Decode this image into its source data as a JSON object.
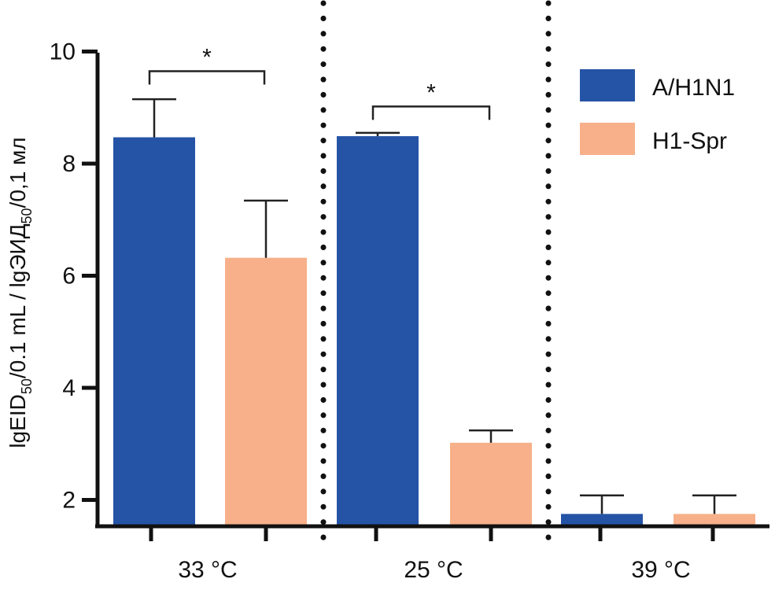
{
  "chart_data": {
    "type": "bar",
    "ylabel": "lgEID50/0.1 mL / lgЭИД50/0,1 мл",
    "ylabel_parts": {
      "p1": "lgEID",
      "s1": "50",
      "p2": "/0.1 mL / lgЭИД",
      "s2": "50",
      "p3": "/0,1 мл"
    },
    "ylim": [
      1.5,
      10
    ],
    "yticks": [
      "2",
      "4",
      "6",
      "8",
      "10"
    ],
    "categories": [
      "33 °C",
      "25 °C",
      "39 °C"
    ],
    "series": [
      {
        "name": "A/H1N1",
        "color": "#2554a6",
        "values": [
          8.47,
          8.49,
          1.75
        ],
        "errors": [
          0.68,
          0.06,
          0.33
        ]
      },
      {
        "name": "H1-Spr",
        "color": "#f7b089",
        "values": [
          6.32,
          3.02,
          1.75
        ],
        "errors": [
          1.02,
          0.22,
          0.33
        ]
      }
    ],
    "significance": [
      {
        "category_index": 0,
        "label": "*",
        "level": 9.65
      },
      {
        "category_index": 1,
        "label": "*",
        "level": 9.02
      }
    ],
    "grid": false,
    "legend_position": "top-right",
    "separators": "dotted vertical lines between groups"
  }
}
